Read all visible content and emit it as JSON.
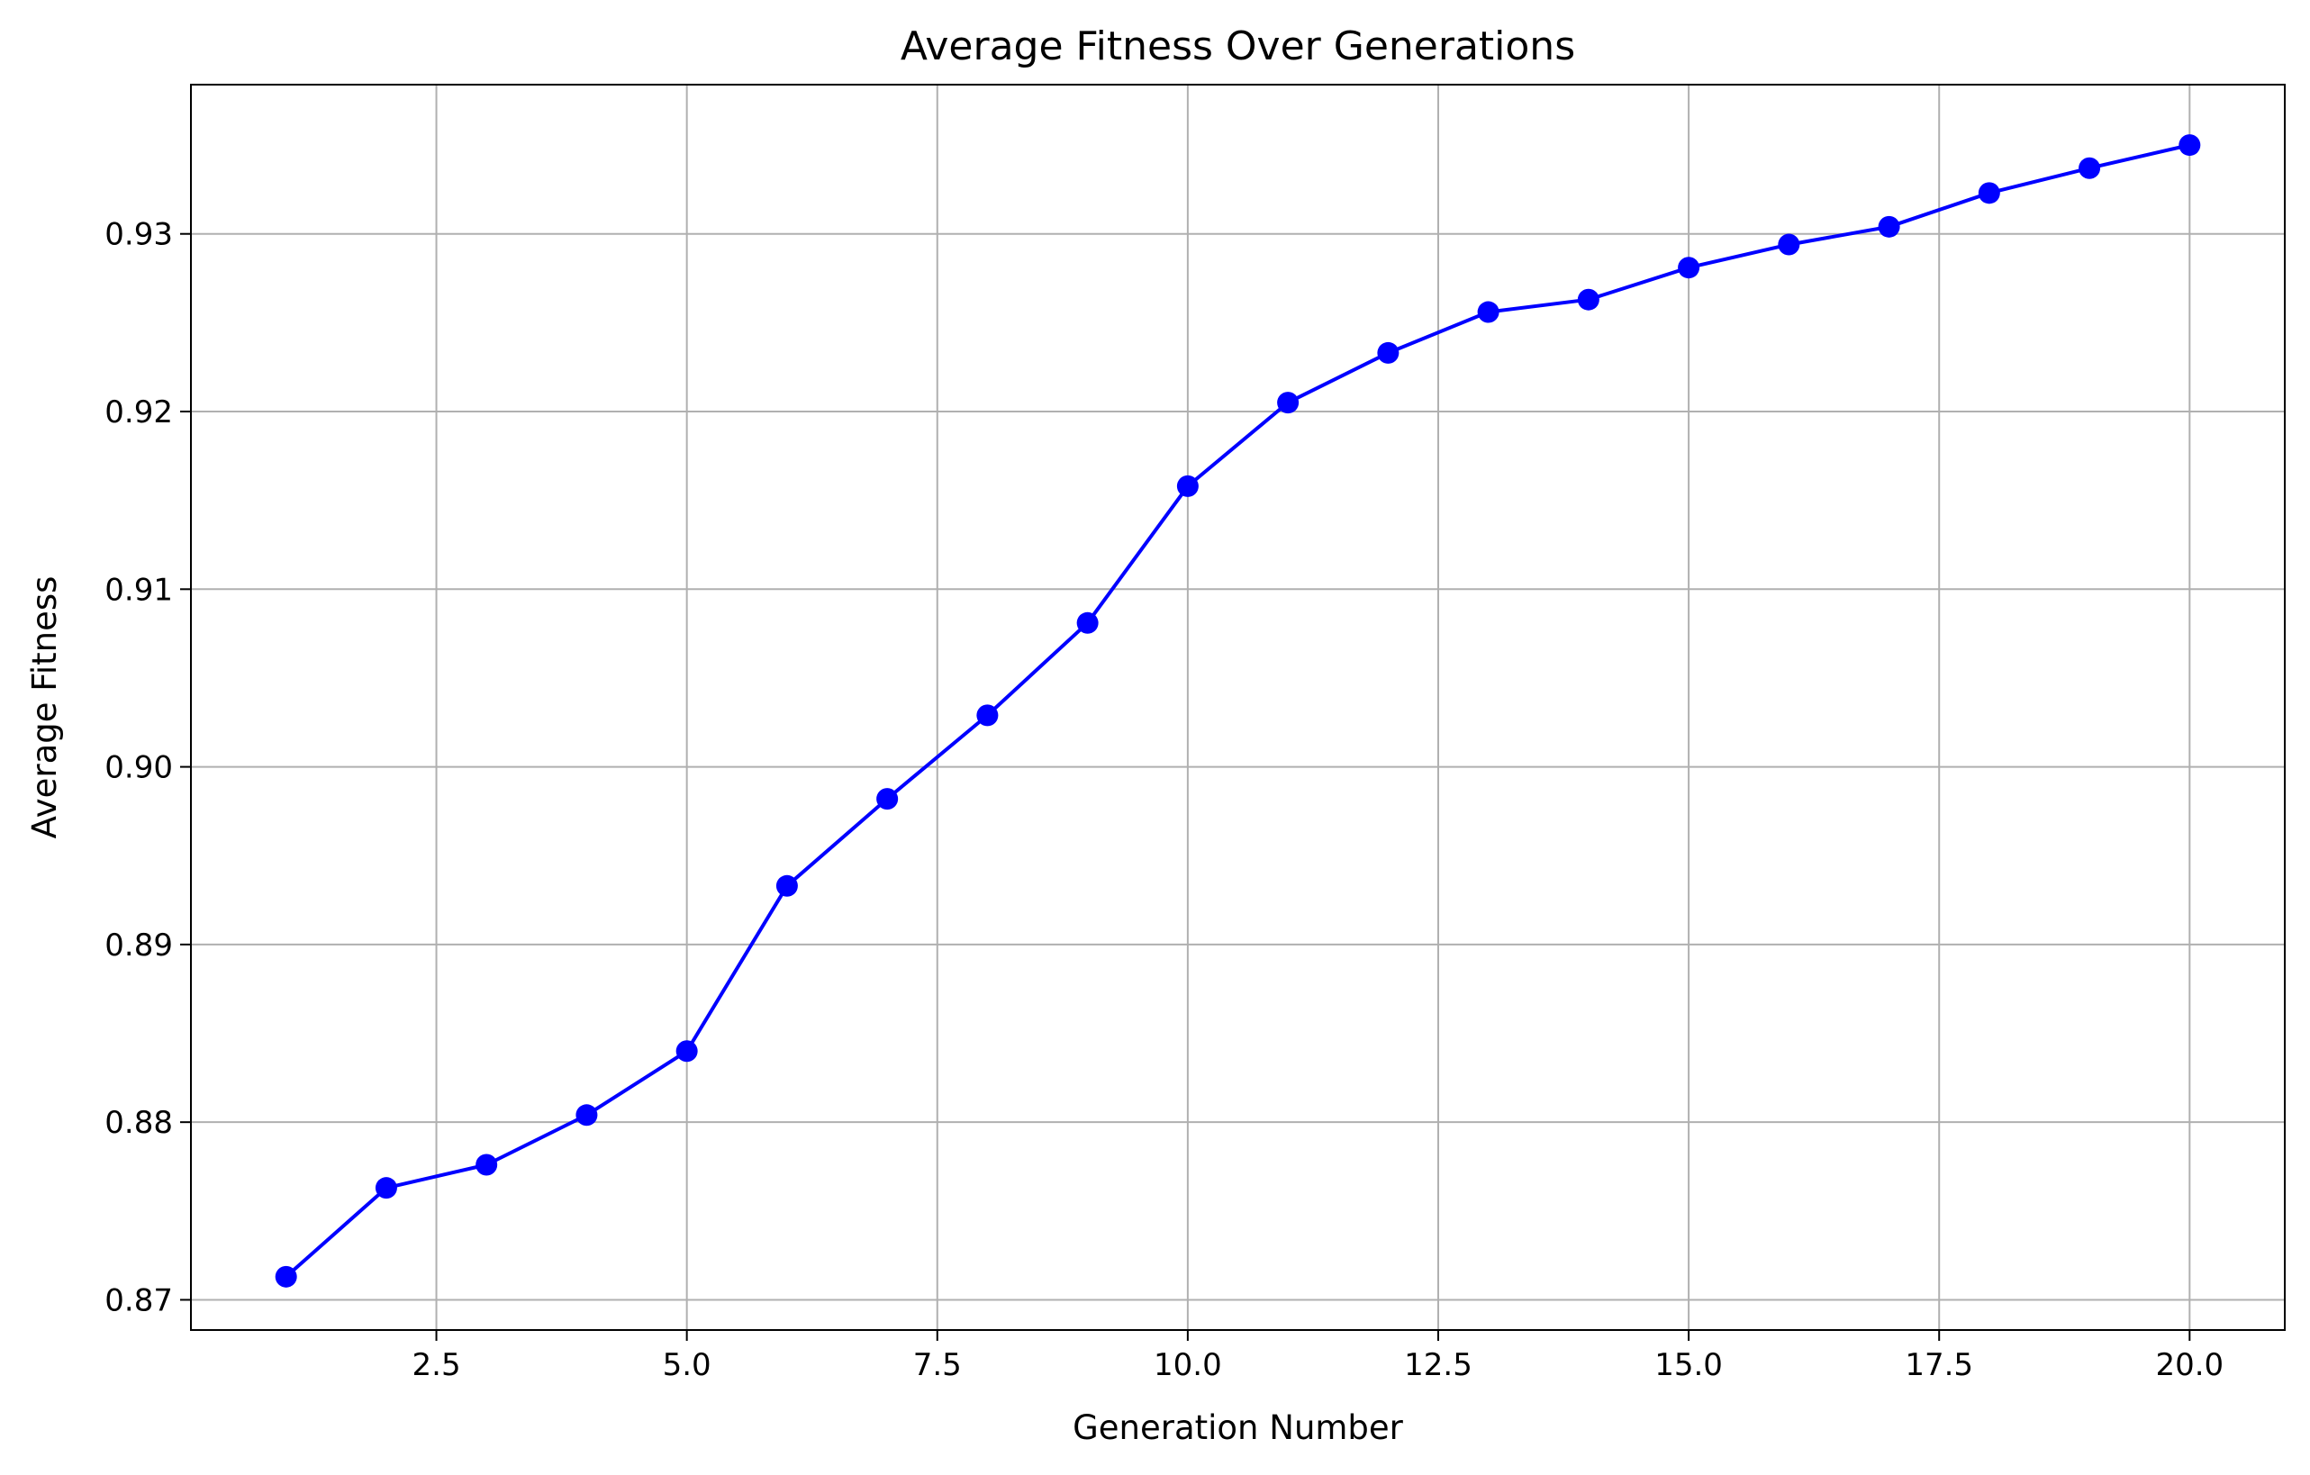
{
  "chart_data": {
    "type": "line",
    "title": "Average Fitness Over Generations",
    "xlabel": "Generation Number",
    "ylabel": "Average Fitness",
    "xlim": [
      0.05,
      20.95
    ],
    "ylim": [
      0.8683,
      0.9384
    ],
    "xticks": [
      2.5,
      5.0,
      7.5,
      10.0,
      12.5,
      15.0,
      17.5,
      20.0
    ],
    "xtick_labels": [
      "2.5",
      "5.0",
      "7.5",
      "10.0",
      "12.5",
      "15.0",
      "17.5",
      "20.0"
    ],
    "yticks": [
      0.87,
      0.88,
      0.89,
      0.9,
      0.91,
      0.92,
      0.93
    ],
    "ytick_labels": [
      "0.87",
      "0.88",
      "0.89",
      "0.90",
      "0.91",
      "0.92",
      "0.93"
    ],
    "grid": true,
    "series": [
      {
        "color": "#0000ff",
        "marker": "circle",
        "x": [
          1,
          2,
          3,
          4,
          5,
          6,
          7,
          8,
          9,
          10,
          11,
          12,
          13,
          14,
          15,
          16,
          17,
          18,
          19,
          20
        ],
        "y": [
          0.8713,
          0.8763,
          0.8776,
          0.8804,
          0.884,
          0.8933,
          0.8982,
          0.9029,
          0.9081,
          0.9158,
          0.9205,
          0.9233,
          0.9256,
          0.9263,
          0.9281,
          0.9294,
          0.9304,
          0.9323,
          0.9337,
          0.935
        ]
      }
    ]
  }
}
